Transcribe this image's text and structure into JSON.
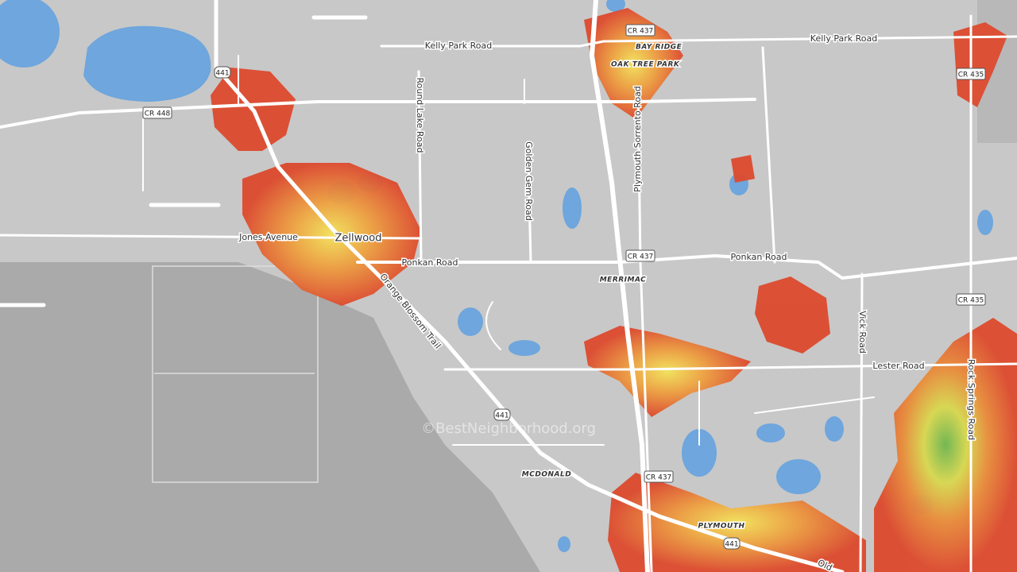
{
  "map": {
    "road_labels": [
      "Kelly Park Road",
      "Kelly Park Road",
      "Round Lake Road",
      "Golden Gem Road",
      "Plymouth Sorrento Road",
      "Jones Avenue",
      "Ponkan Road",
      "Ponkan Road",
      "Orange Blossom Trail",
      "Vick Road",
      "Lester Road",
      "Rock Springs Road",
      "Old"
    ],
    "place_labels": [
      "BAY RIDGE",
      "OAK TREE PARK",
      "Zellwood",
      "MERRIMAC",
      "MCDONALD",
      "PLYMOUTH"
    ],
    "shields": [
      "CR 437",
      "CR 437",
      "CR 437",
      "CR 448",
      "CR 435",
      "CR 435",
      "441",
      "441",
      "441"
    ],
    "watermark": "©BestNeighborhood.org"
  }
}
